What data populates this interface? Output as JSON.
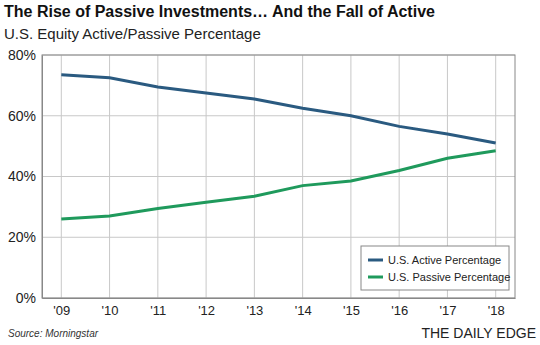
{
  "chart_data": {
    "type": "line",
    "title": "The Rise of Passive Investments… And the Fall of Active",
    "subtitle": "U.S. Equity Active/Passive Percentage",
    "source": "Source: Morningstar",
    "credit": "THE DAILY EDGE",
    "categories": [
      "'09",
      "'10",
      "'11",
      "'12",
      "'13",
      "'14",
      "'15",
      "'16",
      "'17",
      "'18"
    ],
    "series": [
      {
        "name": "U.S. Active Percentage",
        "color": "#2a5a80",
        "values": [
          73.5,
          72.5,
          69.5,
          67.5,
          65.5,
          62.5,
          60,
          56.5,
          54,
          51
        ]
      },
      {
        "name": "U.S. Passive Percentage",
        "color": "#1f9a5c",
        "values": [
          26,
          27,
          29.5,
          31.5,
          33.5,
          37,
          38.5,
          42,
          46,
          48.5
        ]
      }
    ],
    "ylim": [
      0,
      80
    ],
    "yticks": [
      {
        "value": 0,
        "label": "0%"
      },
      {
        "value": 20,
        "label": "20%"
      },
      {
        "value": 40,
        "label": "40%"
      },
      {
        "value": 60,
        "label": "60%"
      },
      {
        "value": 80,
        "label": "80%"
      }
    ],
    "grid": true,
    "legend": "lower right"
  }
}
